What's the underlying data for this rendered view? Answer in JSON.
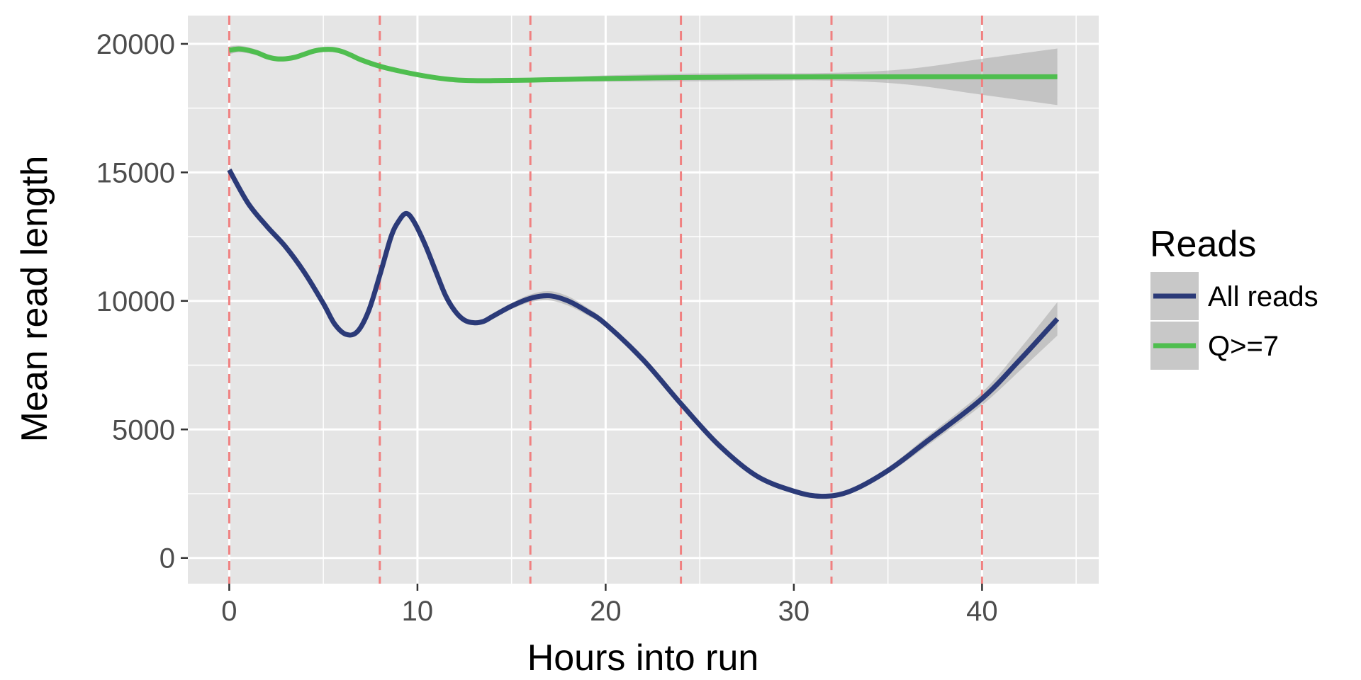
{
  "chart_data": {
    "type": "line",
    "xlabel": "Hours into run",
    "ylabel": "Mean read length",
    "xlim": [
      -2.2,
      46.2
    ],
    "ylim": [
      -1000,
      21100
    ],
    "x_ticks": [
      0,
      10,
      20,
      30,
      40
    ],
    "y_ticks": [
      0,
      5000,
      10000,
      15000,
      20000
    ],
    "grid": true,
    "panel_background": "#e5e5e5",
    "grid_color": "#ffffff",
    "vlines": {
      "x": [
        0,
        8,
        16,
        24,
        32,
        40
      ],
      "color": "#f08080",
      "style": "dashed"
    },
    "legend": {
      "title": "Reads",
      "placement": "right"
    },
    "series": [
      {
        "name": "All reads",
        "color": "#2b3a78",
        "x": [
          0,
          1,
          2,
          3,
          4,
          5,
          5.6,
          6.2,
          6.8,
          7.4,
          8,
          8.6,
          9,
          9.4,
          9.8,
          10.4,
          11,
          11.5,
          12,
          12.5,
          13,
          13.5,
          14,
          15,
          16,
          17,
          18,
          19,
          20,
          22,
          24,
          26,
          28,
          30,
          31.5,
          33,
          35,
          37,
          40,
          42,
          44
        ],
        "y": [
          15100,
          13800,
          12900,
          12100,
          11100,
          9900,
          9100,
          8700,
          8800,
          9600,
          11000,
          12500,
          13100,
          13400,
          13100,
          12200,
          11100,
          10200,
          9600,
          9250,
          9150,
          9200,
          9400,
          9800,
          10100,
          10200,
          10000,
          9600,
          9100,
          7700,
          6000,
          4400,
          3200,
          2600,
          2400,
          2600,
          3400,
          4500,
          6200,
          7700,
          9300
        ],
        "ribbon_halfwidth": [
          120,
          100,
          100,
          100,
          100,
          100,
          100,
          100,
          100,
          100,
          100,
          100,
          100,
          100,
          100,
          100,
          100,
          100,
          100,
          100,
          100,
          100,
          100,
          120,
          150,
          180,
          180,
          150,
          120,
          100,
          100,
          100,
          100,
          100,
          100,
          100,
          120,
          180,
          250,
          420,
          650
        ]
      },
      {
        "name": "Q>=7",
        "color": "#4fbe4f",
        "x": [
          0,
          0.5,
          1,
          1.5,
          2,
          2.5,
          3,
          3.5,
          4,
          4.5,
          5,
          5.5,
          6,
          6.5,
          7,
          8,
          9,
          10,
          11,
          12,
          13,
          14,
          16,
          18,
          20,
          24,
          28,
          32,
          36,
          40,
          44
        ],
        "y": [
          19750,
          19800,
          19750,
          19650,
          19500,
          19420,
          19420,
          19480,
          19600,
          19720,
          19780,
          19780,
          19700,
          19550,
          19380,
          19130,
          18950,
          18800,
          18680,
          18600,
          18570,
          18570,
          18590,
          18620,
          18650,
          18690,
          18710,
          18720,
          18720,
          18720,
          18720
        ],
        "ribbon_halfwidth": [
          150,
          130,
          120,
          110,
          110,
          100,
          100,
          100,
          100,
          100,
          100,
          100,
          100,
          100,
          100,
          100,
          90,
          80,
          70,
          60,
          50,
          50,
          50,
          80,
          120,
          150,
          150,
          150,
          300,
          700,
          1100
        ]
      }
    ]
  }
}
